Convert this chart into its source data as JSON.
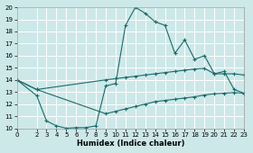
{
  "xlabel": "Humidex (Indice chaleur)",
  "bg_color": "#cde8e8",
  "grid_color": "#ffffff",
  "line_color": "#1a6b6b",
  "xlim": [
    0,
    23
  ],
  "ylim": [
    10,
    20
  ],
  "xticks": [
    0,
    2,
    3,
    4,
    5,
    6,
    7,
    8,
    9,
    10,
    11,
    12,
    13,
    14,
    15,
    16,
    17,
    18,
    19,
    20,
    21,
    22,
    23
  ],
  "yticks": [
    10,
    11,
    12,
    13,
    14,
    15,
    16,
    17,
    18,
    19,
    20
  ],
  "line1_x": [
    0,
    2,
    3,
    4,
    5,
    6,
    7,
    8,
    9,
    10,
    11,
    12,
    13,
    14,
    15,
    16,
    17,
    18,
    19,
    20,
    21,
    22,
    23
  ],
  "line1_y": [
    14.0,
    12.7,
    10.6,
    10.2,
    10.0,
    10.05,
    10.05,
    10.2,
    13.5,
    13.7,
    18.5,
    20.0,
    19.5,
    18.8,
    18.5,
    16.2,
    17.3,
    15.7,
    16.0,
    14.5,
    14.7,
    13.2,
    12.9
  ],
  "line2_x": [
    0,
    2,
    9,
    10,
    11,
    12,
    13,
    14,
    15,
    16,
    17,
    18,
    19,
    20,
    21,
    22,
    23
  ],
  "line2_y": [
    14.0,
    13.2,
    14.0,
    14.1,
    14.2,
    14.3,
    14.4,
    14.5,
    14.6,
    14.7,
    14.8,
    14.9,
    14.95,
    14.5,
    14.5,
    14.5,
    14.4
  ],
  "line3_x": [
    0,
    2,
    9,
    10,
    11,
    12,
    13,
    14,
    15,
    16,
    17,
    18,
    19,
    20,
    21,
    22,
    23
  ],
  "line3_y": [
    14.0,
    13.2,
    11.2,
    11.4,
    11.6,
    11.8,
    12.0,
    12.2,
    12.3,
    12.4,
    12.5,
    12.6,
    12.75,
    12.85,
    12.9,
    12.95,
    12.9
  ]
}
